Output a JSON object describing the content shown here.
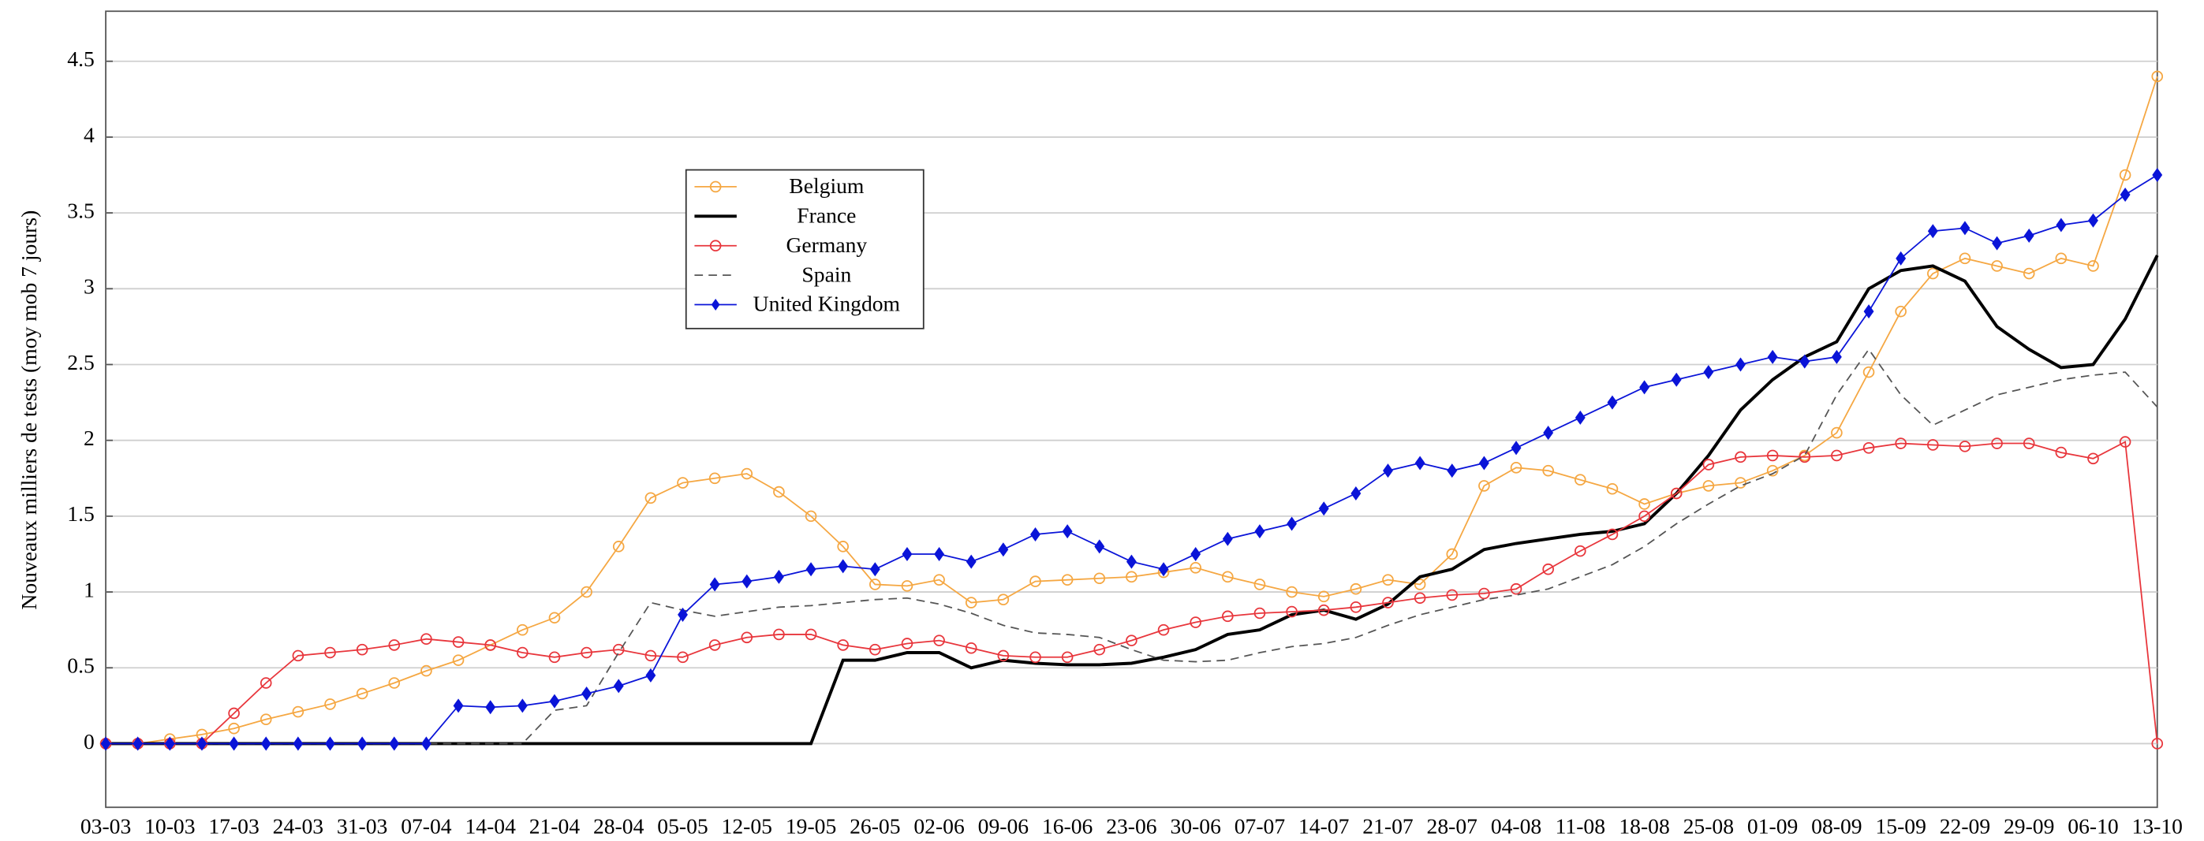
{
  "chart_data": {
    "type": "line",
    "ylabel": "Nouveaux milliers de tests (moy mob 7 jours)",
    "categories": [
      "03-03",
      null,
      "10-03",
      null,
      "17-03",
      null,
      "24-03",
      null,
      "31-03",
      null,
      "07-04",
      null,
      "14-04",
      null,
      "21-04",
      null,
      "28-04",
      null,
      "05-05",
      null,
      "12-05",
      null,
      "19-05",
      null,
      "26-05",
      null,
      "02-06",
      null,
      "09-06",
      null,
      "16-06",
      null,
      "23-06",
      null,
      "30-06",
      null,
      "07-07",
      null,
      "14-07",
      null,
      "21-07",
      null,
      "28-07",
      null,
      "04-08",
      null,
      "11-08",
      null,
      "18-08",
      null,
      "25-08",
      null,
      "01-09",
      null,
      "08-09",
      null,
      "15-09",
      null,
      "22-09",
      null,
      "29-09",
      null,
      "06-10",
      null,
      "13-10"
    ],
    "ylim": [
      -0.42,
      4.83
    ],
    "yticks": [
      0,
      0.5,
      1,
      1.5,
      2,
      2.5,
      3,
      3.5,
      4,
      4.5
    ],
    "grid": true,
    "legend": "upper center",
    "series": [
      {
        "name": "Belgium",
        "color": "#f5a742",
        "marker": "circle",
        "line_style": "solid",
        "values": [
          0,
          0,
          0.03,
          0.06,
          0.1,
          0.16,
          0.21,
          0.26,
          0.33,
          0.4,
          0.48,
          0.55,
          0.65,
          0.75,
          0.83,
          1.0,
          1.3,
          1.62,
          1.72,
          1.75,
          1.78,
          1.66,
          1.5,
          1.3,
          1.05,
          1.04,
          1.08,
          0.93,
          0.95,
          1.07,
          1.08,
          1.09,
          1.1,
          1.13,
          1.16,
          1.1,
          1.05,
          1.0,
          0.97,
          1.02,
          1.08,
          1.05,
          1.25,
          1.7,
          1.82,
          1.8,
          1.74,
          1.68,
          1.58,
          1.65,
          1.7,
          1.72,
          1.8,
          1.9,
          2.05,
          2.45,
          2.85,
          3.1,
          3.2,
          3.15,
          3.1,
          3.2,
          3.15,
          3.75,
          4.4
        ]
      },
      {
        "name": "France",
        "color": "#000000",
        "marker": "none",
        "line_style": "solid",
        "values": [
          0,
          0,
          0,
          0,
          0,
          0,
          0,
          0,
          0,
          0,
          0,
          0,
          0,
          0,
          0,
          0,
          0,
          0,
          0,
          0,
          0,
          0,
          0,
          0.55,
          0.55,
          0.6,
          0.6,
          0.5,
          0.55,
          0.53,
          0.52,
          0.52,
          0.53,
          0.57,
          0.62,
          0.72,
          0.75,
          0.85,
          0.88,
          0.82,
          0.92,
          1.1,
          1.15,
          1.28,
          1.32,
          1.35,
          1.38,
          1.4,
          1.45,
          1.65,
          1.9,
          2.2,
          2.4,
          2.55,
          2.65,
          3.0,
          3.12,
          3.15,
          3.05,
          2.75,
          2.6,
          2.48,
          2.5,
          2.8,
          3.22
        ]
      },
      {
        "name": "Germany",
        "color": "#e8363c",
        "marker": "circle",
        "line_style": "solid",
        "values": [
          0,
          0,
          0,
          0,
          0.2,
          0.4,
          0.58,
          0.6,
          0.62,
          0.65,
          0.69,
          0.67,
          0.65,
          0.6,
          0.57,
          0.6,
          0.62,
          0.58,
          0.57,
          0.65,
          0.7,
          0.72,
          0.72,
          0.65,
          0.62,
          0.66,
          0.68,
          0.63,
          0.58,
          0.57,
          0.57,
          0.62,
          0.68,
          0.75,
          0.8,
          0.84,
          0.86,
          0.87,
          0.88,
          0.9,
          0.93,
          0.96,
          0.98,
          0.99,
          1.02,
          1.15,
          1.27,
          1.38,
          1.5,
          1.65,
          1.84,
          1.89,
          1.9,
          1.89,
          1.9,
          1.95,
          1.98,
          1.97,
          1.96,
          1.98,
          1.98,
          1.92,
          1.88,
          1.99,
          0
        ]
      },
      {
        "name": "Spain",
        "color": "#555555",
        "marker": "none",
        "line_style": "dashed",
        "values": [
          0,
          0,
          0,
          0,
          0,
          0,
          0,
          0,
          0,
          0,
          0,
          0,
          0,
          0,
          0.22,
          0.25,
          0.6,
          0.93,
          0.88,
          0.84,
          0.87,
          0.9,
          0.91,
          0.93,
          0.95,
          0.96,
          0.92,
          0.86,
          0.78,
          0.73,
          0.72,
          0.7,
          0.62,
          0.55,
          0.54,
          0.55,
          0.6,
          0.64,
          0.66,
          0.7,
          0.78,
          0.85,
          0.9,
          0.95,
          0.98,
          1.02,
          1.1,
          1.18,
          1.3,
          1.45,
          1.58,
          1.7,
          1.78,
          1.9,
          2.3,
          2.6,
          2.3,
          2.1,
          2.2,
          2.3,
          2.35,
          2.4,
          2.43,
          2.45,
          2.22
        ]
      },
      {
        "name": "United Kingdom",
        "color": "#0a14d8",
        "marker": "diamond",
        "line_style": "solid",
        "values": [
          0,
          0,
          0,
          0,
          0,
          0,
          0,
          0,
          0,
          0,
          0,
          0.25,
          0.24,
          0.25,
          0.28,
          0.33,
          0.38,
          0.45,
          0.85,
          1.05,
          1.07,
          1.1,
          1.15,
          1.17,
          1.15,
          1.25,
          1.25,
          1.2,
          1.28,
          1.38,
          1.4,
          1.3,
          1.2,
          1.15,
          1.25,
          1.35,
          1.4,
          1.45,
          1.55,
          1.65,
          1.8,
          1.85,
          1.8,
          1.85,
          1.95,
          2.05,
          2.15,
          2.25,
          2.35,
          2.4,
          2.45,
          2.5,
          2.55,
          2.52,
          2.55,
          2.85,
          3.2,
          3.38,
          3.4,
          3.3,
          3.35,
          3.42,
          3.45,
          3.62,
          3.75
        ]
      }
    ]
  }
}
